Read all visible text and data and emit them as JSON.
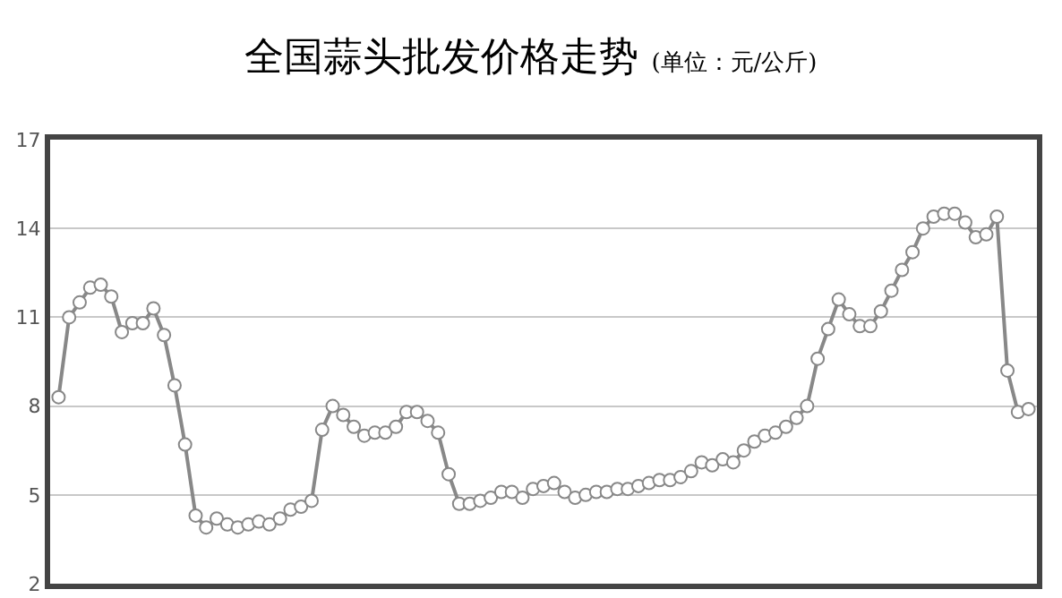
{
  "chart_data": {
    "type": "line",
    "title": "全国蒜头批发价格走势",
    "subtitle": "(单位：元/公斤)",
    "categories": [
      null,
      null,
      null,
      null,
      null,
      null,
      null,
      null,
      null,
      null,
      null,
      null,
      null,
      null,
      null,
      null,
      null,
      null,
      null,
      null,
      null,
      null,
      null,
      null,
      null,
      null,
      null,
      null,
      null,
      null,
      null,
      null,
      null,
      null,
      null,
      null,
      null,
      null,
      null,
      null,
      null,
      null,
      null,
      null,
      null,
      null,
      null,
      null,
      null,
      null,
      null,
      null,
      null,
      null,
      null,
      null,
      null,
      null,
      null,
      null,
      null,
      null,
      null,
      null,
      null,
      null,
      null,
      null,
      null,
      null,
      null,
      null,
      null,
      null,
      null,
      null,
      null,
      null,
      null,
      null,
      null,
      null,
      null,
      null,
      null,
      null,
      null,
      null,
      null,
      null,
      null,
      null,
      null
    ],
    "series": [
      {
        "color": "#888888",
        "values": [
          8.3,
          11.0,
          11.5,
          12.0,
          12.1,
          11.7,
          10.5,
          10.8,
          10.8,
          11.3,
          10.4,
          8.7,
          6.7,
          4.3,
          3.9,
          4.2,
          4.0,
          3.9,
          4.0,
          4.1,
          4.0,
          4.2,
          4.5,
          4.6,
          4.8,
          7.2,
          8.0,
          7.7,
          7.3,
          7.0,
          7.1,
          7.1,
          7.3,
          7.8,
          7.8,
          7.5,
          7.1,
          5.7,
          4.7,
          4.7,
          4.8,
          4.9,
          5.1,
          5.1,
          4.9,
          5.2,
          5.3,
          5.4,
          5.1,
          4.9,
          5.0,
          5.1,
          5.1,
          5.2,
          5.2,
          5.3,
          5.4,
          5.5,
          5.5,
          5.6,
          5.8,
          6.1,
          6.0,
          6.2,
          6.1,
          6.5,
          6.8,
          7.0,
          7.1,
          7.3,
          7.6,
          8.0,
          9.6,
          10.6,
          11.6,
          11.1,
          10.7,
          10.7,
          11.2,
          11.9,
          12.6,
          13.2,
          14.0,
          14.4,
          14.5,
          14.5,
          14.2,
          13.7,
          13.8,
          14.4,
          9.2,
          7.8,
          7.9
        ]
      }
    ],
    "ylim": [
      2,
      17
    ],
    "yticks": [
      2,
      5,
      8,
      11,
      14,
      17
    ],
    "grid": "y",
    "marker": "circle",
    "line_style": "solid",
    "tick_labels": "y"
  }
}
